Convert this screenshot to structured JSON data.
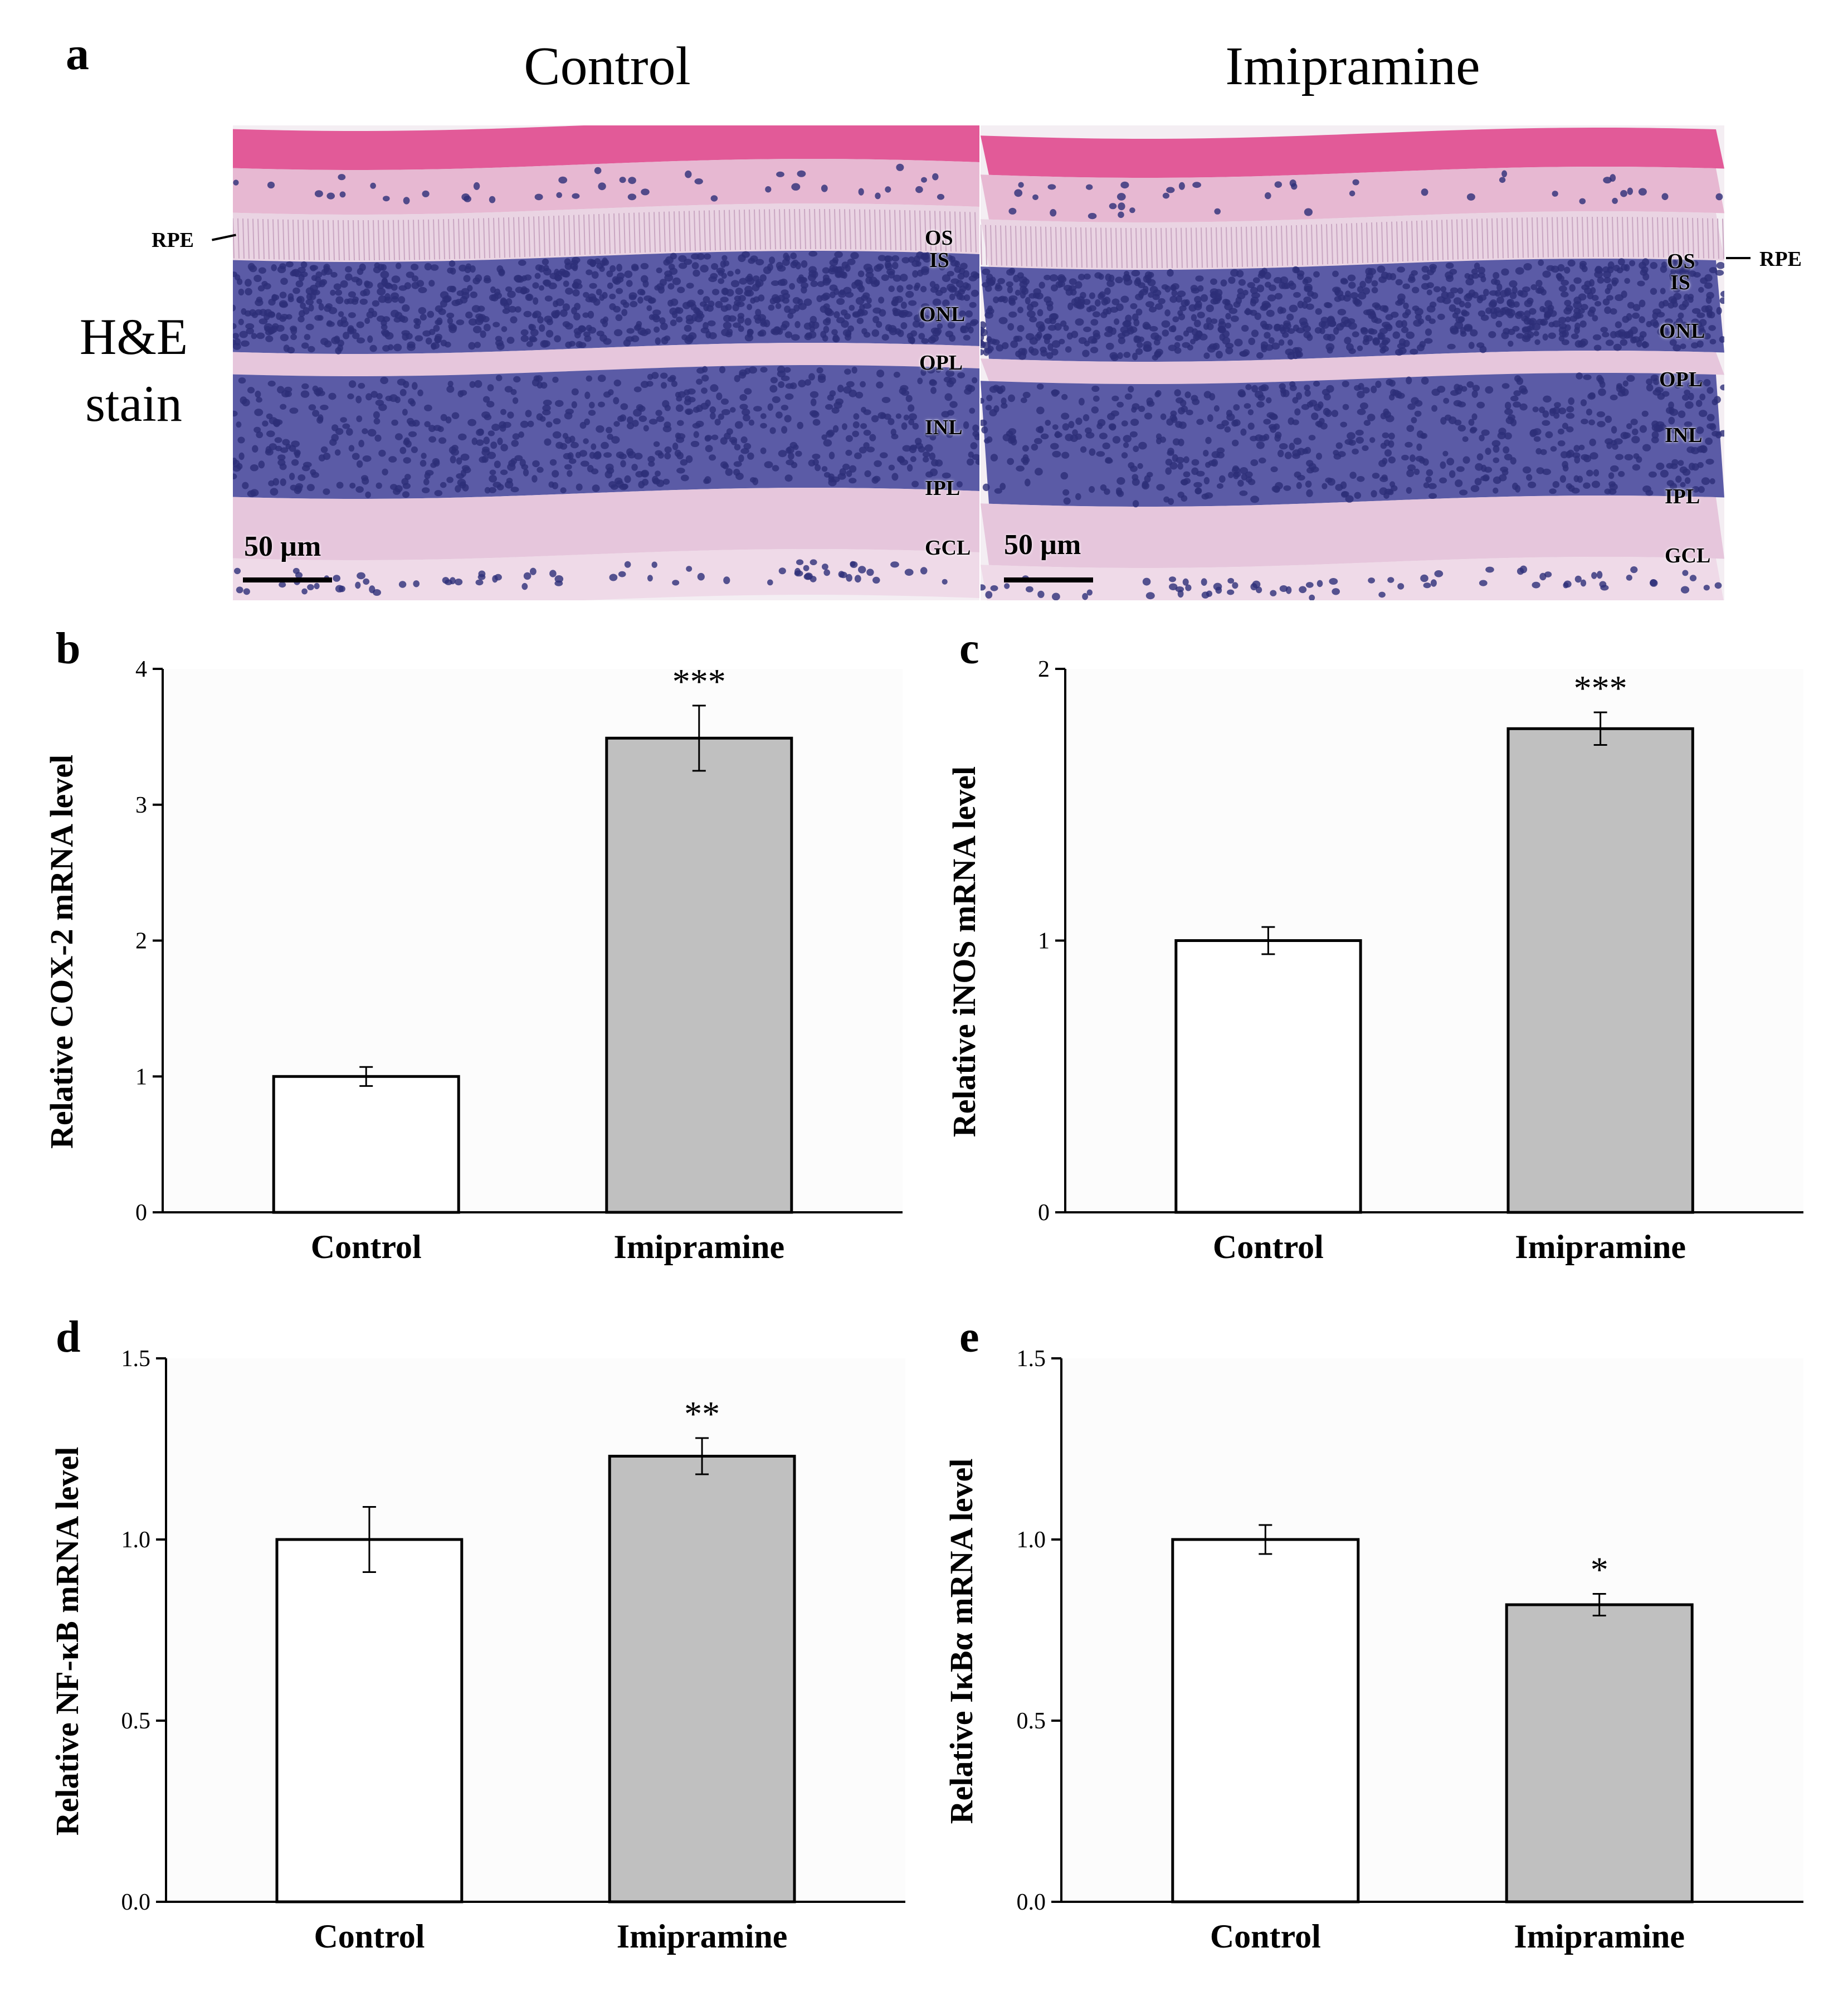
{
  "panel_a": {
    "letter": "a",
    "columns": [
      "Control",
      "Imipramine"
    ],
    "stain_label_line1": "H&E",
    "stain_label_line2": "stain",
    "scale_bar_label": "50 µm",
    "rpe_label": "RPE",
    "layers": [
      "OS",
      "IS",
      "ONL",
      "OPL",
      "INL",
      "IPL",
      "GCL"
    ],
    "colors": {
      "background": "#f4eef3",
      "sclera": "#e25a98",
      "choroid": "#e7b8d2",
      "photoreceptor_segments": "#ead4e3",
      "nuclear_layer": "#5b5ba6",
      "nucleus": "#2d2e78",
      "plexiform": "#e6c6dc",
      "ganglion": "#efdae8"
    }
  },
  "chart_data": [
    {
      "panel": "b",
      "type": "bar",
      "categories": [
        "Control",
        "Imipramine"
      ],
      "values": [
        1.0,
        3.49
      ],
      "errors": [
        0.07,
        0.24
      ],
      "significance": [
        "",
        "***"
      ],
      "ylabel": "Relative COX-2 mRNA level",
      "ylim": [
        0,
        4
      ],
      "yticks": [
        0,
        1,
        2,
        3,
        4
      ],
      "ytick_labels": [
        "0",
        "1",
        "2",
        "3",
        "4"
      ],
      "bar_colors": [
        "#ffffff",
        "#c0c0c0"
      ]
    },
    {
      "panel": "c",
      "type": "bar",
      "categories": [
        "Control",
        "Imipramine"
      ],
      "values": [
        1.0,
        1.78
      ],
      "errors": [
        0.05,
        0.06
      ],
      "significance": [
        "",
        "***"
      ],
      "ylabel": "Relative iNOS mRNA level",
      "ylim": [
        0,
        2
      ],
      "yticks": [
        0,
        1,
        2
      ],
      "ytick_labels": [
        "0",
        "1",
        "2"
      ],
      "bar_colors": [
        "#ffffff",
        "#c0c0c0"
      ]
    },
    {
      "panel": "d",
      "type": "bar",
      "categories": [
        "Control",
        "Imipramine"
      ],
      "values": [
        1.0,
        1.23
      ],
      "errors": [
        0.09,
        0.05
      ],
      "significance": [
        "",
        "**"
      ],
      "ylabel": "Relative NF-κB mRNA level",
      "ylim": [
        0,
        1.5
      ],
      "yticks": [
        0,
        0.5,
        1.0,
        1.5
      ],
      "ytick_labels": [
        "0.0",
        "0.5",
        "1.0",
        "1.5"
      ],
      "bar_colors": [
        "#ffffff",
        "#c0c0c0"
      ]
    },
    {
      "panel": "e",
      "type": "bar",
      "categories": [
        "Control",
        "Imipramine"
      ],
      "values": [
        1.0,
        0.82
      ],
      "errors": [
        0.04,
        0.03
      ],
      "significance": [
        "",
        "*"
      ],
      "ylabel": "Relative IκBα mRNA level",
      "ylim": [
        0,
        1.5
      ],
      "yticks": [
        0,
        0.5,
        1.0,
        1.5
      ],
      "ytick_labels": [
        "0.0",
        "0.5",
        "1.0",
        "1.5"
      ],
      "bar_colors": [
        "#ffffff",
        "#c0c0c0"
      ]
    }
  ]
}
